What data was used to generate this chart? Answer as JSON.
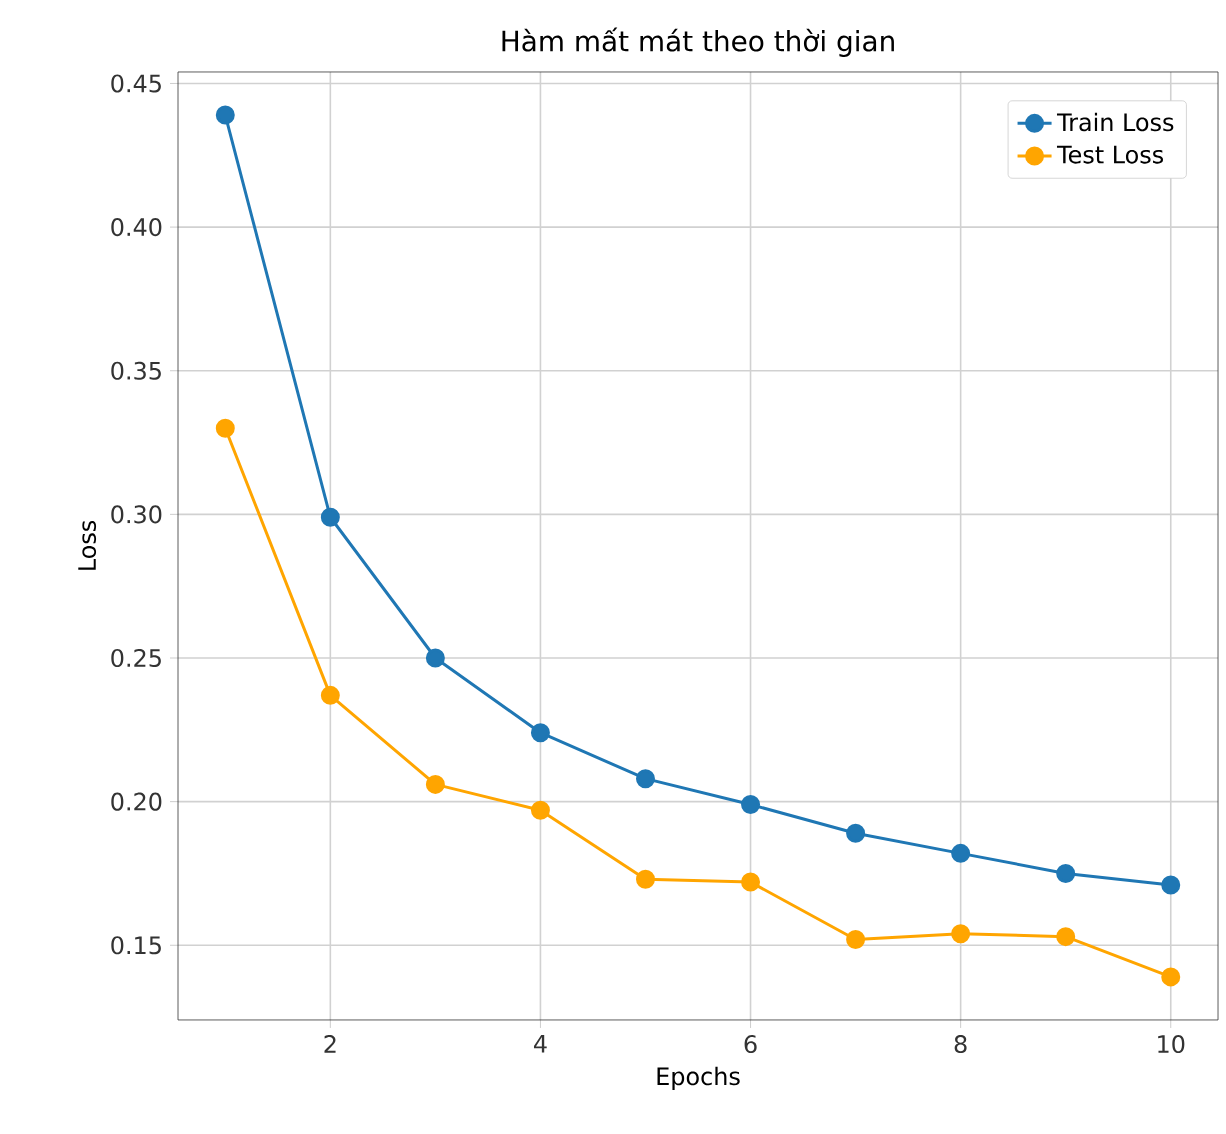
{
  "chart_data": {
    "type": "line",
    "title": "Hàm mất mát theo thời gian",
    "xlabel": "Epochs",
    "ylabel": "Loss",
    "x": [
      1,
      2,
      3,
      4,
      5,
      6,
      7,
      8,
      9,
      10
    ],
    "series": [
      {
        "name": "Train Loss",
        "color": "#1f77b4",
        "values": [
          0.439,
          0.299,
          0.25,
          0.224,
          0.208,
          0.199,
          0.189,
          0.182,
          0.175,
          0.171
        ]
      },
      {
        "name": "Test Loss",
        "color": "#ffa500",
        "values": [
          0.33,
          0.237,
          0.206,
          0.197,
          0.173,
          0.172,
          0.152,
          0.154,
          0.153,
          0.139
        ]
      }
    ],
    "xlim": [
      0.55,
      10.45
    ],
    "ylim": [
      0.124,
      0.454
    ],
    "xticks": [
      2,
      4,
      6,
      8,
      10
    ],
    "yticks": [
      {
        "value": 0.15,
        "label": "0.15"
      },
      {
        "value": 0.2,
        "label": "0.20"
      },
      {
        "value": 0.25,
        "label": "0.25"
      },
      {
        "value": 0.3,
        "label": "0.30"
      },
      {
        "value": 0.35,
        "label": "0.35"
      },
      {
        "value": 0.4,
        "label": "0.40"
      },
      {
        "value": 0.45,
        "label": "0.45"
      }
    ],
    "grid": true,
    "legend": "top right",
    "marker": "circle",
    "line_style": "solid"
  }
}
